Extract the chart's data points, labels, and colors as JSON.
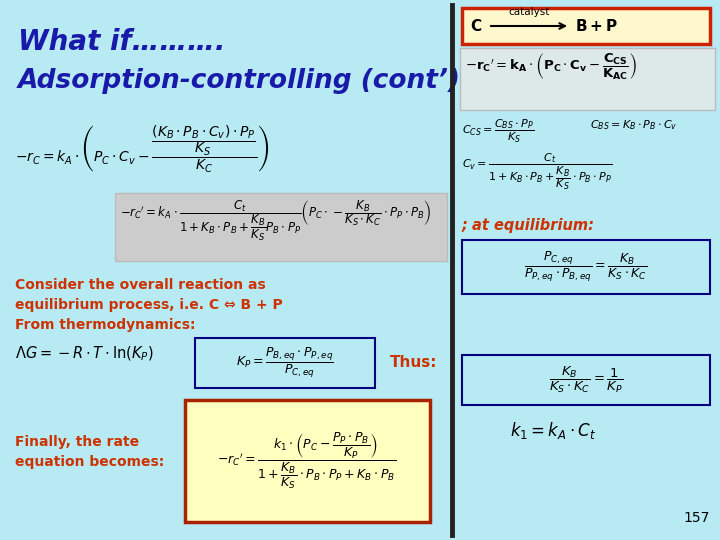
{
  "bg_color": "#b8eaf4",
  "title_line1": "What if……….",
  "title_line2": "Adsorption-controlling (cont’)",
  "title_color": "#1a1aaa",
  "page_number": "157",
  "orange_red": "#cc3300",
  "dark_navy": "#000080"
}
